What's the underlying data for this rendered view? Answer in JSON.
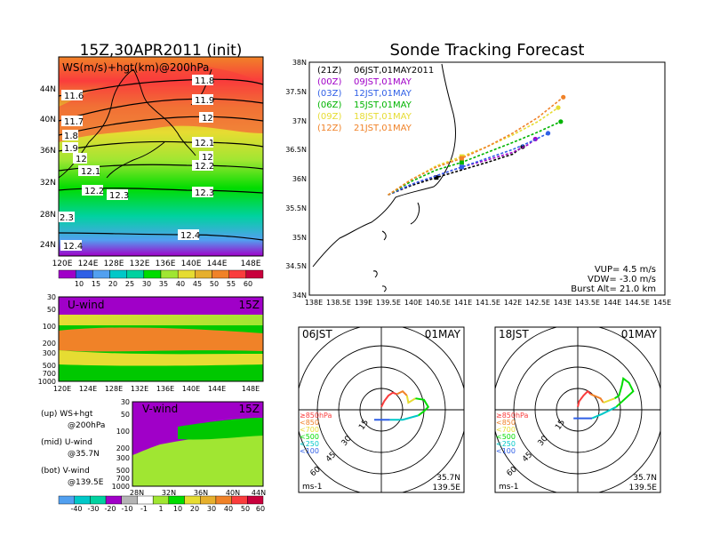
{
  "left_title": "15Z,30APR2011 (init)",
  "right_title": "Sonde Tracking Forecast",
  "colors": {
    "purple": "#a000c8",
    "blue": "#2f5fe6",
    "lightblue": "#52a0f0",
    "cyan": "#00c8c8",
    "teal": "#00d2a0",
    "green": "#00dc00",
    "lightgreen": "#a0e632",
    "yellow": "#e6dc32",
    "orange": "#e6af2d",
    "darkorange": "#f08228",
    "red": "#fa3c3c",
    "crimson": "#c8003c",
    "track_21z": "#000000",
    "track_00z": "#a000c8",
    "track_03z": "#2f5fe6",
    "track_06z": "#00b400",
    "track_09z": "#e6dc32",
    "track_12z": "#f08228"
  },
  "top_map": {
    "label": "WS(m/s)+hgt(km)@200hPa",
    "lat_ticks": [
      "44N",
      "40N",
      "36N",
      "32N",
      "28N",
      "24N"
    ],
    "lon_ticks": [
      "120E",
      "124E",
      "128E",
      "132E",
      "136E",
      "140E",
      "144E",
      "148E"
    ],
    "contour_labels": [
      "11.6",
      "11.7",
      "11.8",
      "11.9",
      "12",
      "12",
      "12",
      "12.1",
      "12.1",
      "12.2",
      "12.2",
      "12.3",
      "12.3",
      "12.4",
      "12.4",
      "1.8",
      "1.9",
      "2.3"
    ],
    "colorbar_ticks": [
      "10",
      "15",
      "20",
      "25",
      "30",
      "35",
      "40",
      "45",
      "50",
      "55",
      "60"
    ]
  },
  "u_panel": {
    "label": "U-wind",
    "time": "15Z",
    "y_ticks": [
      "30",
      "50",
      "100",
      "200",
      "300",
      "500",
      "700",
      "1000"
    ],
    "x_ticks": [
      "120E",
      "124E",
      "128E",
      "132E",
      "136E",
      "140E",
      "144E",
      "148E"
    ]
  },
  "v_panel": {
    "label": "V-wind",
    "time": "15Z",
    "y_ticks": [
      "30",
      "50",
      "100",
      "200",
      "300",
      "500",
      "700",
      "1000"
    ],
    "x_ticks": [
      "28N",
      "32N",
      "36N",
      "40N",
      "44N"
    ]
  },
  "notes": [
    {
      "head": "(up) WS+hgt",
      "sub": "@200hPa"
    },
    {
      "head": "(mid) U-wind",
      "sub": "@35.7N"
    },
    {
      "head": "(bot) V-wind",
      "sub": "@139.5E"
    }
  ],
  "bottom_colorbar_ticks": [
    "-40",
    "-30",
    "-20",
    "-10",
    "-1",
    "1",
    "10",
    "20",
    "30",
    "40",
    "50",
    "60"
  ],
  "tracking_map": {
    "lat_ticks": [
      "38N",
      "37.5N",
      "37N",
      "36.5N",
      "36N",
      "35.5N",
      "35N",
      "34.5N",
      "34N"
    ],
    "lon_ticks": [
      "138E",
      "138.5E",
      "139E",
      "139.5E",
      "140E",
      "140.5E",
      "141E",
      "141.5E",
      "142E",
      "142.5E",
      "143E",
      "143.5E",
      "144E",
      "144.5E",
      "145E"
    ],
    "legend": [
      {
        "run": "(21Z)",
        "valid": "06JST,01MAY2011"
      },
      {
        "run": "(00Z)",
        "valid": "09JST,01MAY"
      },
      {
        "run": "(03Z)",
        "valid": "12JST,01MAY"
      },
      {
        "run": "(06Z)",
        "valid": "15JST,01MAY"
      },
      {
        "run": "(09Z)",
        "valid": "18JST,01MAY"
      },
      {
        "run": "(12Z)",
        "valid": "21JST,01MAY"
      }
    ],
    "vup": "VUP=  4.5 m/s",
    "vdw": "VDW= -3.0 m/s",
    "burst": "Burst Alt= 21.0 km"
  },
  "hodo_left": {
    "time": "06JST",
    "date": "01MAY",
    "units": "ms-1",
    "lat": "35.7N",
    "lon": "139.5E"
  },
  "hodo_right": {
    "time": "18JST",
    "date": "01MAY",
    "units": "ms-1",
    "lat": "35.7N",
    "lon": "139.5E"
  },
  "hodo_ring_labels": [
    "15",
    "30",
    "45",
    "60"
  ],
  "hodo_legend": [
    "≥850hPa",
    "<850",
    "<700",
    "<500",
    "<250",
    "<100"
  ],
  "chart_data": [
    {
      "type": "line",
      "title": "Sonde Tracking Forecast",
      "x_units": "degrees E",
      "y_units": "degrees N",
      "xlim": [
        138,
        145
      ],
      "ylim": [
        34,
        38
      ],
      "series": [
        {
          "name": "(21Z) 06JST,01MAY2011",
          "x": [
            139.55,
            140.0,
            140.5,
            141.0,
            141.5,
            142.0,
            142.2
          ],
          "y": [
            35.72,
            35.88,
            36.02,
            36.15,
            36.28,
            36.42,
            36.55
          ]
        },
        {
          "name": "(00Z) 09JST,01MAY",
          "x": [
            139.55,
            140.0,
            140.5,
            141.0,
            141.5,
            142.0,
            142.3,
            142.45
          ],
          "y": [
            35.72,
            35.9,
            36.05,
            36.2,
            36.32,
            36.45,
            36.58,
            36.68
          ]
        },
        {
          "name": "(03Z) 12JST,01MAY",
          "x": [
            139.55,
            140.0,
            140.5,
            141.0,
            141.5,
            142.0,
            142.4,
            142.7
          ],
          "y": [
            35.72,
            35.9,
            36.05,
            36.2,
            36.35,
            36.5,
            36.65,
            36.78
          ]
        },
        {
          "name": "(06Z) 15JST,01MAY",
          "x": [
            139.55,
            140.0,
            140.5,
            141.0,
            141.5,
            142.0,
            142.5,
            142.95
          ],
          "y": [
            35.72,
            35.95,
            36.15,
            36.28,
            36.45,
            36.62,
            36.8,
            36.98
          ]
        },
        {
          "name": "(09Z) 18JST,01MAY",
          "x": [
            139.55,
            140.0,
            140.5,
            141.0,
            141.5,
            142.0,
            142.5,
            142.9
          ],
          "y": [
            35.72,
            35.98,
            36.22,
            36.38,
            36.55,
            36.75,
            36.98,
            37.22
          ]
        },
        {
          "name": "(12Z) 21JST,01MAY",
          "x": [
            139.55,
            140.0,
            140.5,
            141.0,
            141.5,
            142.0,
            142.5,
            143.0
          ],
          "y": [
            35.72,
            35.98,
            36.2,
            36.35,
            36.55,
            36.78,
            37.05,
            37.4
          ]
        }
      ]
    },
    {
      "type": "line",
      "title": "06JST 01MAY hodograph",
      "series": [
        {
          "name": "≥850hPa",
          "x": [
            0,
            2,
            5,
            8,
            11
          ],
          "y": [
            2,
            6,
            10,
            12,
            11
          ]
        },
        {
          "name": "<850",
          "x": [
            11,
            15,
            18
          ],
          "y": [
            11,
            13,
            10
          ]
        },
        {
          "name": "<700",
          "x": [
            18,
            19,
            24
          ],
          "y": [
            10,
            5,
            8
          ]
        },
        {
          "name": "<500",
          "x": [
            24,
            30,
            33,
            30,
            26
          ],
          "y": [
            8,
            7,
            2,
            -1,
            -4
          ]
        },
        {
          "name": "<250",
          "x": [
            26,
            15,
            6
          ],
          "y": [
            -4,
            -7,
            -7
          ]
        },
        {
          "name": "<100",
          "x": [
            6,
            -5
          ],
          "y": [
            -7,
            -7
          ]
        }
      ]
    },
    {
      "type": "line",
      "title": "18JST 01MAY hodograph",
      "series": [
        {
          "name": "≥850hPa",
          "x": [
            0,
            1,
            4,
            7,
            9
          ],
          "y": [
            2,
            6,
            10,
            13,
            11
          ]
        },
        {
          "name": "<850",
          "x": [
            9,
            16,
            18
          ],
          "y": [
            11,
            8,
            5
          ]
        },
        {
          "name": "<700",
          "x": [
            18,
            26
          ],
          "y": [
            5,
            8
          ]
        },
        {
          "name": "<500",
          "x": [
            26,
            29,
            31,
            32,
            36,
            39,
            27
          ],
          "y": [
            8,
            10,
            17,
            22,
            19,
            13,
            2
          ]
        },
        {
          "name": "<250",
          "x": [
            27,
            17,
            10
          ],
          "y": [
            2,
            -3,
            -6
          ]
        },
        {
          "name": "<100",
          "x": [
            10,
            -3
          ],
          "y": [
            -6,
            -6
          ]
        }
      ]
    }
  ]
}
